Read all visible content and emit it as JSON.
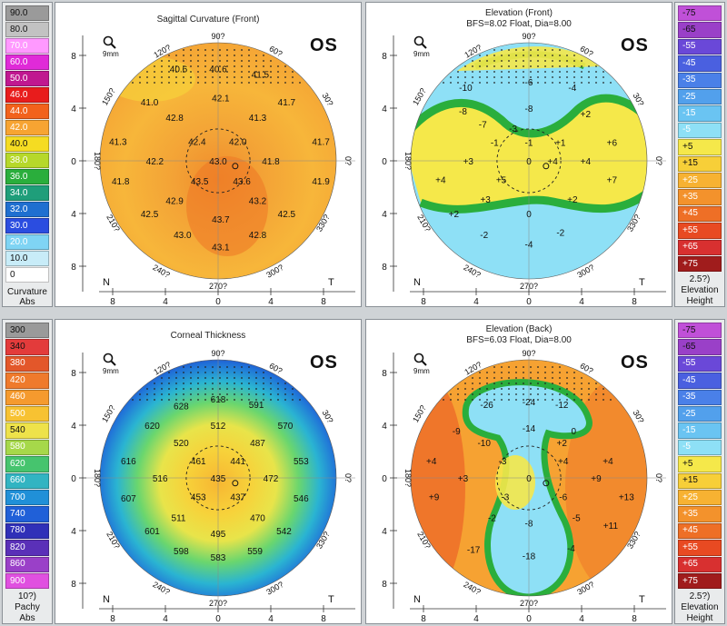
{
  "scales": {
    "curvature": {
      "cells": [
        {
          "label": "90.0",
          "color": "#9a9a9a"
        },
        {
          "label": "80.0",
          "color": "#c2c2c2"
        },
        {
          "label": "70.0",
          "color": "#ff99ff"
        },
        {
          "label": "60.0",
          "color": "#e02ad8"
        },
        {
          "label": "50.0",
          "color": "#c01890"
        },
        {
          "label": "46.0",
          "color": "#e81c1c"
        },
        {
          "label": "44.0",
          "color": "#f2621c"
        },
        {
          "label": "42.0",
          "color": "#f7a432"
        },
        {
          "label": "40.0",
          "color": "#f5dc22"
        },
        {
          "label": "38.0",
          "color": "#b6d82a"
        },
        {
          "label": "36.0",
          "color": "#2aae3c"
        },
        {
          "label": "34.0",
          "color": "#1f9e7a"
        },
        {
          "label": "32.0",
          "color": "#1f6fd0"
        },
        {
          "label": "30.0",
          "color": "#2b4de0"
        },
        {
          "label": "20.0",
          "color": "#7fd4f4"
        },
        {
          "label": "10.0",
          "color": "#c8ecf8"
        },
        {
          "label": "0",
          "color": "#ffffff"
        }
      ],
      "foot1": "Curvature",
      "foot2": "Abs"
    },
    "thickness": {
      "cells": [
        {
          "label": "300",
          "color": "#9a9a9a"
        },
        {
          "label": "340",
          "color": "#e33b3b"
        },
        {
          "label": "380",
          "color": "#e3572a"
        },
        {
          "label": "420",
          "color": "#ef7a2c"
        },
        {
          "label": "460",
          "color": "#f59a2e"
        },
        {
          "label": "500",
          "color": "#f7c232"
        },
        {
          "label": "540",
          "color": "#eee24a"
        },
        {
          "label": "580",
          "color": "#a6d84a"
        },
        {
          "label": "620",
          "color": "#46c46e"
        },
        {
          "label": "660",
          "color": "#32b4c2"
        },
        {
          "label": "700",
          "color": "#2090d8"
        },
        {
          "label": "740",
          "color": "#2060d8"
        },
        {
          "label": "780",
          "color": "#3030b8"
        },
        {
          "label": "820",
          "color": "#5a30b8"
        },
        {
          "label": "860",
          "color": "#9a40c8"
        },
        {
          "label": "900",
          "color": "#e050e0"
        }
      ],
      "foot0": "10?)",
      "foot1": "Pachy",
      "foot2": "Abs"
    },
    "elevation_front": {
      "cells": [
        {
          "label": "-75",
          "color": "#c050d8"
        },
        {
          "label": "-65",
          "color": "#9a40c8"
        },
        {
          "label": "-55",
          "color": "#6a48d8"
        },
        {
          "label": "-45",
          "color": "#4a60e0"
        },
        {
          "label": "-35",
          "color": "#4a80e8"
        },
        {
          "label": "-25",
          "color": "#52a0ec"
        },
        {
          "label": "-15",
          "color": "#6ac4f2"
        },
        {
          "label": "-5",
          "color": "#8ee0f6"
        },
        {
          "label": "+5",
          "color": "#f5e84a"
        },
        {
          "label": "+15",
          "color": "#f7cf38"
        },
        {
          "label": "+25",
          "color": "#f7b232"
        },
        {
          "label": "+35",
          "color": "#f3922c"
        },
        {
          "label": "+45",
          "color": "#ee6f26"
        },
        {
          "label": "+55",
          "color": "#e84a22"
        },
        {
          "label": "+65",
          "color": "#d83030"
        },
        {
          "label": "+75",
          "color": "#a01c1c"
        }
      ],
      "foot0": "2.5?)",
      "foot1": "Elevation",
      "foot2": "Height"
    },
    "elevation_back": {
      "cells": [
        {
          "label": "-75",
          "color": "#c050d8"
        },
        {
          "label": "-65",
          "color": "#9a40c8"
        },
        {
          "label": "-55",
          "color": "#6a48d8"
        },
        {
          "label": "-45",
          "color": "#4a60e0"
        },
        {
          "label": "-35",
          "color": "#4a80e8"
        },
        {
          "label": "-25",
          "color": "#52a0ec"
        },
        {
          "label": "-15",
          "color": "#6ac4f2"
        },
        {
          "label": "-5",
          "color": "#8ee0f6"
        },
        {
          "label": "+5",
          "color": "#f5e84a"
        },
        {
          "label": "+15",
          "color": "#f7cf38"
        },
        {
          "label": "+25",
          "color": "#f7b232"
        },
        {
          "label": "+35",
          "color": "#f3922c"
        },
        {
          "label": "+45",
          "color": "#ee6f26"
        },
        {
          "label": "+55",
          "color": "#e84a22"
        },
        {
          "label": "+65",
          "color": "#d83030"
        },
        {
          "label": "+75",
          "color": "#a01c1c"
        }
      ],
      "foot0": "2.5?)",
      "foot1": "Elevation",
      "foot2": "Height"
    }
  },
  "common": {
    "eye": "OS",
    "mag": "9mm",
    "nasal": "N",
    "temporal": "T",
    "angles": {
      "a90": "90?",
      "a120": "120?",
      "a60": "60?",
      "a150": "150?",
      "a30": "30?",
      "a180": "180?",
      "a0": "0?",
      "a210": "210?",
      "a330": "330?",
      "a240": "240?",
      "a300": "300?",
      "a270": "270?"
    },
    "yticks": [
      "8",
      "4",
      "0",
      "4",
      "8"
    ],
    "xticks": [
      "8",
      "4",
      "0",
      "4",
      "8"
    ]
  },
  "maps": {
    "sagittal": {
      "title": "Sagittal Curvature (Front)",
      "subtitle": "",
      "values": [
        {
          "t": "40.6"
        },
        {
          "t": "40.6"
        },
        {
          "t": "41.5"
        },
        {
          "t": "41.0"
        },
        {
          "t": "42.1"
        },
        {
          "t": "41.7"
        },
        {
          "t": "42.8"
        },
        {
          "t": "41.3"
        },
        {
          "t": "41.3"
        },
        {
          "t": "42.4"
        },
        {
          "t": "42.0"
        },
        {
          "t": "41.7"
        },
        {
          "t": "42.2"
        },
        {
          "t": "43.0"
        },
        {
          "t": "41.8"
        },
        {
          "t": "41.8"
        },
        {
          "t": "43.5"
        },
        {
          "t": "43.6"
        },
        {
          "t": "41.9"
        },
        {
          "t": "42.9"
        },
        {
          "t": "43.2"
        },
        {
          "t": "42.5"
        },
        {
          "t": "43.7"
        },
        {
          "t": "42.5"
        },
        {
          "t": "43.0"
        },
        {
          "t": "42.8"
        },
        {
          "t": "43.1"
        }
      ]
    },
    "elevation_front": {
      "title": "Elevation (Front)",
      "subtitle": "BFS=8.02 Float, Dia=8.00",
      "values": [
        {
          "t": "-10"
        },
        {
          "t": "-6"
        },
        {
          "t": "-4"
        },
        {
          "t": "-8"
        },
        {
          "t": "-8"
        },
        {
          "t": "+2"
        },
        {
          "t": "-7"
        },
        {
          "t": "-3"
        },
        {
          "t": "-1"
        },
        {
          "t": "-1"
        },
        {
          "t": "+1"
        },
        {
          "t": "+6"
        },
        {
          "t": "+3"
        },
        {
          "t": "0"
        },
        {
          "t": "+4"
        },
        {
          "t": "+4"
        },
        {
          "t": "+4"
        },
        {
          "t": "+5"
        },
        {
          "t": "+7"
        },
        {
          "t": "+3"
        },
        {
          "t": "+2"
        },
        {
          "t": "+2"
        },
        {
          "t": "0"
        },
        {
          "t": "-2"
        },
        {
          "t": "-2"
        },
        {
          "t": "-4"
        }
      ]
    },
    "thickness": {
      "title": "Corneal Thickness",
      "subtitle": "",
      "values": [
        {
          "t": "618"
        },
        {
          "t": "628"
        },
        {
          "t": "591"
        },
        {
          "t": "620"
        },
        {
          "t": "512"
        },
        {
          "t": "570"
        },
        {
          "t": "520"
        },
        {
          "t": "487"
        },
        {
          "t": "616"
        },
        {
          "t": "461"
        },
        {
          "t": "441"
        },
        {
          "t": "553"
        },
        {
          "t": "516"
        },
        {
          "t": "435"
        },
        {
          "t": "472"
        },
        {
          "t": "453"
        },
        {
          "t": "437"
        },
        {
          "t": "607"
        },
        {
          "t": "546"
        },
        {
          "t": "511"
        },
        {
          "t": "470"
        },
        {
          "t": "601"
        },
        {
          "t": "495"
        },
        {
          "t": "542"
        },
        {
          "t": "598"
        },
        {
          "t": "583"
        },
        {
          "t": "559"
        }
      ]
    },
    "elevation_back": {
      "title": "Elevation (Back)",
      "subtitle": "BFS=6.03 Float, Dia=8.00",
      "values": [
        {
          "t": "-26"
        },
        {
          "t": "-24"
        },
        {
          "t": "-12"
        },
        {
          "t": "-9"
        },
        {
          "t": "-14"
        },
        {
          "t": "0"
        },
        {
          "t": "-10"
        },
        {
          "t": "+2"
        },
        {
          "t": "+4"
        },
        {
          "t": "-3"
        },
        {
          "t": "+4"
        },
        {
          "t": "+4"
        },
        {
          "t": "+3"
        },
        {
          "t": "0"
        },
        {
          "t": "+9"
        },
        {
          "t": "+9"
        },
        {
          "t": "-3"
        },
        {
          "t": "-6"
        },
        {
          "t": "+13"
        },
        {
          "t": "-2"
        },
        {
          "t": "-8"
        },
        {
          "t": "+11"
        },
        {
          "t": "-5"
        },
        {
          "t": "-17"
        },
        {
          "t": "-18"
        },
        {
          "t": "-4"
        }
      ]
    }
  }
}
